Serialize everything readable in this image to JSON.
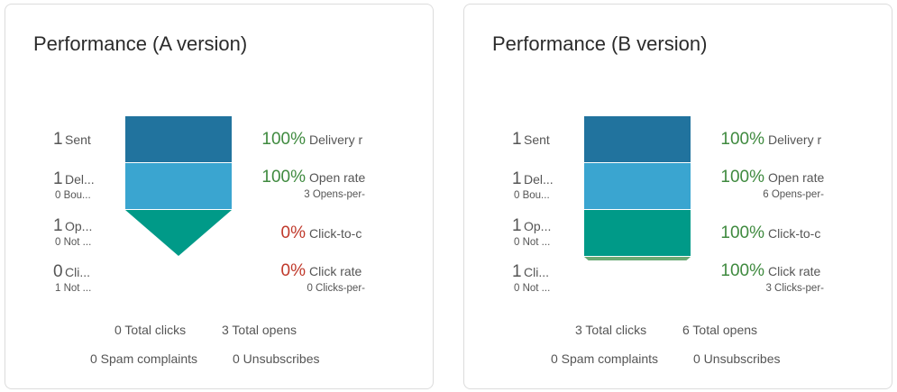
{
  "cards": [
    {
      "title": "Performance (A version)",
      "left": [
        {
          "num": "1",
          "label": "Sent",
          "sub": ""
        },
        {
          "num": "1",
          "label": "Del...",
          "sub": "0 Bou..."
        },
        {
          "num": "1",
          "label": "Op...",
          "sub": "0 Not ..."
        },
        {
          "num": "0",
          "label": "Cli...",
          "sub": "1 Not ..."
        }
      ],
      "right": [
        {
          "num": "100%",
          "label": "Delivery r",
          "sub": "",
          "color": "green"
        },
        {
          "num": "100%",
          "label": "Open rate",
          "sub": "3 Opens-per-",
          "color": "green"
        },
        {
          "num": "0%",
          "label": "Click-to-c",
          "sub": "",
          "color": "red"
        },
        {
          "num": "0%",
          "label": "Click rate",
          "sub": "0 Clicks-per-",
          "color": "red"
        }
      ],
      "stats": {
        "total_clicks": "0 Total clicks",
        "total_opens": "3 Total opens",
        "spam": "0 Spam complaints",
        "unsubs": "0 Unsubscribes"
      },
      "funnel_colors": [
        "#21739e",
        "#3aa5d0",
        "#009a88"
      ],
      "funnel_stages_filled": 2
    },
    {
      "title": "Performance (B version)",
      "left": [
        {
          "num": "1",
          "label": "Sent",
          "sub": ""
        },
        {
          "num": "1",
          "label": "Del...",
          "sub": "0 Bou..."
        },
        {
          "num": "1",
          "label": "Op...",
          "sub": "0 Not ..."
        },
        {
          "num": "1",
          "label": "Cli...",
          "sub": "0 Not ..."
        }
      ],
      "right": [
        {
          "num": "100%",
          "label": "Delivery r",
          "sub": "",
          "color": "green"
        },
        {
          "num": "100%",
          "label": "Open rate",
          "sub": "6 Opens-per-",
          "color": "green"
        },
        {
          "num": "100%",
          "label": "Click-to-c",
          "sub": "",
          "color": "green"
        },
        {
          "num": "100%",
          "label": "Click rate",
          "sub": "3 Clicks-per-",
          "color": "green"
        }
      ],
      "stats": {
        "total_clicks": "3 Total clicks",
        "total_opens": "6 Total opens",
        "spam": "0 Spam complaints",
        "unsubs": "0 Unsubscribes"
      },
      "funnel_colors": [
        "#21739e",
        "#3aa5d0",
        "#009a88",
        "#6aaa74"
      ],
      "funnel_stages_filled": 3
    }
  ]
}
